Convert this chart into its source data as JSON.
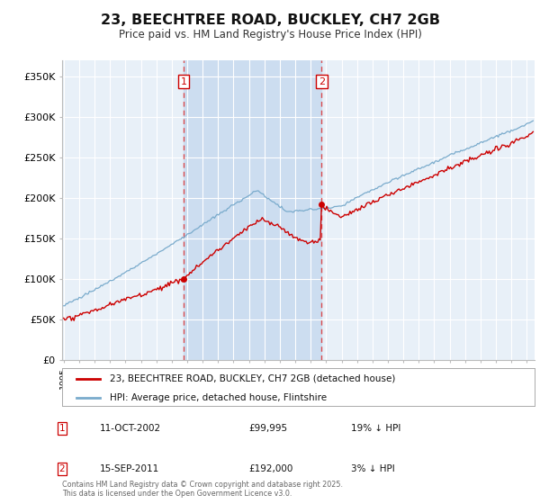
{
  "title": "23, BEECHTREE ROAD, BUCKLEY, CH7 2GB",
  "subtitle": "Price paid vs. HM Land Registry's House Price Index (HPI)",
  "legend_line1": "23, BEECHTREE ROAD, BUCKLEY, CH7 2GB (detached house)",
  "legend_line2": "HPI: Average price, detached house, Flintshire",
  "transaction1": {
    "label": "1",
    "date": "11-OCT-2002",
    "price": 99995,
    "note": "19% ↓ HPI",
    "x": 2002.78
  },
  "transaction2": {
    "label": "2",
    "date": "15-SEP-2011",
    "price": 192000,
    "note": "3% ↓ HPI",
    "x": 2011.71
  },
  "footnote": "Contains HM Land Registry data © Crown copyright and database right 2025.\nThis data is licensed under the Open Government Licence v3.0.",
  "ylim": [
    0,
    370000
  ],
  "xlim": [
    1994.9,
    2025.5
  ],
  "background_color": "#ffffff",
  "plot_bg_color": "#e8f0f8",
  "grid_color": "#ffffff",
  "shade_color": "#ccddf0",
  "red_color": "#cc0000",
  "blue_color": "#7aabcc",
  "marker_box_color": "#cc0000",
  "yticks": [
    0,
    50000,
    100000,
    150000,
    200000,
    250000,
    300000,
    350000
  ],
  "ytick_labels": [
    "£0",
    "£50K",
    "£100K",
    "£150K",
    "£200K",
    "£250K",
    "£300K",
    "£350K"
  ]
}
